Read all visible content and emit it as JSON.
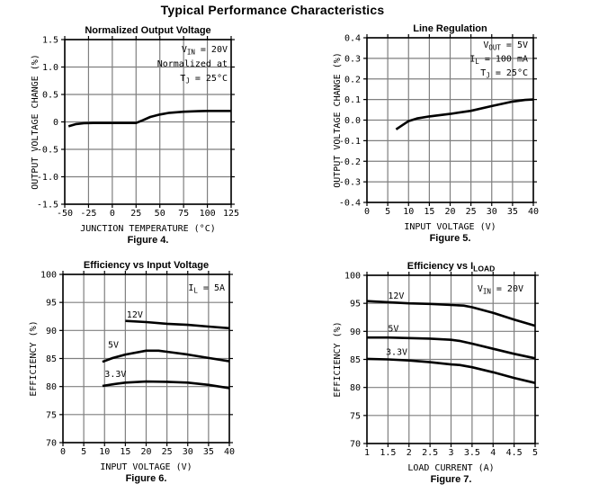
{
  "page": {
    "title": "Typical Performance Characteristics"
  },
  "colors": {
    "grid": "#7f7f7f",
    "ink": "#000000",
    "background": "#ffffff"
  },
  "chart_data": [
    {
      "type": "line",
      "figure": "figure4",
      "title": "Normalized Output Voltage",
      "caption": "Figure 4.",
      "xlabel": "JUNCTION TEMPERATURE (°C)",
      "ylabel": "OUTPUT VOLTAGE CHANGE (%)",
      "xlim": [
        -50,
        125
      ],
      "ylim": [
        -1.5,
        1.5
      ],
      "xticks": [
        -50,
        -25,
        0,
        25,
        50,
        75,
        100,
        125
      ],
      "xtick_labels": [
        "-50",
        "-25",
        "0",
        "25",
        "50",
        "75",
        "100",
        "125"
      ],
      "yticks": [
        1.5,
        1.0,
        0.5,
        0,
        -0.5,
        -1.0,
        -1.5
      ],
      "ytick_labels": [
        "1.5",
        "1.0",
        "0.5",
        "0",
        "-0.5",
        "-1.0",
        "-1.5"
      ],
      "grid": true,
      "annotations": [
        "V_{IN} = 20V",
        "Normalized at",
        "T_{J} = 25°C"
      ],
      "ann_anchor": {
        "top": 14,
        "line_height": 16,
        "right": 4
      },
      "series": [
        {
          "name": "output-voltage-change",
          "x": [
            -46,
            -38,
            -30,
            -20,
            -10,
            0,
            10,
            25,
            32,
            40,
            50,
            60,
            75,
            90,
            100,
            125
          ],
          "y": [
            -0.08,
            -0.04,
            -0.025,
            -0.02,
            -0.02,
            -0.02,
            -0.02,
            -0.02,
            0.03,
            0.09,
            0.135,
            0.165,
            0.185,
            0.195,
            0.2,
            0.2
          ]
        }
      ]
    },
    {
      "type": "line",
      "figure": "figure5",
      "title": "Line Regulation",
      "caption": "Figure 5.",
      "xlabel": "INPUT VOLTAGE (V)",
      "ylabel": "OUTPUT VOLTAGE CHANGE (%)",
      "xlim": [
        0,
        40
      ],
      "ylim": [
        -0.4,
        0.4
      ],
      "xticks": [
        0,
        5,
        10,
        15,
        20,
        25,
        30,
        35,
        40
      ],
      "xtick_labels": [
        "0",
        "5",
        "10",
        "15",
        "20",
        "25",
        "30",
        "35",
        "40"
      ],
      "yticks": [
        0.4,
        0.3,
        0.2,
        0.1,
        0.0,
        -0.1,
        -0.2,
        -0.3,
        -0.4
      ],
      "ytick_labels": [
        "0.4",
        "0.3",
        "0.2",
        "0.1",
        "0.0",
        "-0.1",
        "-0.2",
        "-0.3",
        "-0.4"
      ],
      "grid": true,
      "annotations": [
        "V_{OUT} = 5V",
        "I_{L} = 100 mA",
        "T_{J} = 25°C"
      ],
      "ann_anchor": {
        "top": 11,
        "line_height": 15.5,
        "right": 6
      },
      "series": [
        {
          "name": "output-voltage-change",
          "x": [
            7,
            8.5,
            10,
            12,
            15,
            20,
            25,
            30,
            35,
            38,
            40
          ],
          "y": [
            -0.045,
            -0.025,
            -0.005,
            0.008,
            0.018,
            0.03,
            0.045,
            0.068,
            0.09,
            0.098,
            0.1
          ]
        }
      ]
    },
    {
      "type": "line",
      "figure": "figure6",
      "title": "Efficiency vs Input Voltage",
      "caption": "Figure 6.",
      "xlabel": "INPUT VOLTAGE (V)",
      "ylabel": "EFFICIENCY (%)",
      "xlim": [
        0,
        40
      ],
      "ylim": [
        70,
        100
      ],
      "xticks": [
        0,
        5,
        10,
        15,
        20,
        25,
        30,
        35,
        40
      ],
      "xtick_labels": [
        "0",
        "5",
        "10",
        "15",
        "20",
        "25",
        "30",
        "35",
        "40"
      ],
      "yticks": [
        100,
        95,
        90,
        85,
        80,
        75,
        70
      ],
      "ytick_labels": [
        "100",
        "95",
        "90",
        "85",
        "80",
        "75",
        "70"
      ],
      "grid": true,
      "annotations": [
        "I_{L} = 5A"
      ],
      "ann_anchor": {
        "top": 18,
        "line_height": 16,
        "right": 5
      },
      "series": [
        {
          "name": "12V",
          "label": "12V",
          "label_at": [
            15.3,
            92.3
          ],
          "x": [
            15,
            20,
            25,
            30,
            35,
            40
          ],
          "y": [
            91.7,
            91.5,
            91.2,
            91.0,
            90.7,
            90.4
          ]
        },
        {
          "name": "5V",
          "label": "5V",
          "label_at": [
            10.8,
            86.9
          ],
          "x": [
            9.5,
            12,
            15,
            20,
            23,
            25,
            30,
            35,
            40
          ],
          "y": [
            84.4,
            85.1,
            85.7,
            86.4,
            86.4,
            86.2,
            85.7,
            85.1,
            84.5
          ]
        },
        {
          "name": "3.3V",
          "label": "3.3V",
          "label_at": [
            10.0,
            81.7
          ],
          "x": [
            9.5,
            12,
            15,
            20,
            25,
            30,
            35,
            40
          ],
          "y": [
            80.1,
            80.4,
            80.7,
            80.9,
            80.85,
            80.7,
            80.3,
            79.7
          ]
        }
      ]
    },
    {
      "type": "line",
      "figure": "figure7",
      "title": "Efficiency vs I_{LOAD}",
      "caption": "Figure 7.",
      "xlabel": "LOAD CURRENT (A)",
      "ylabel": "EFFICIENCY (%)",
      "xlim": [
        1,
        5
      ],
      "ylim": [
        70,
        100
      ],
      "xticks": [
        1,
        1.5,
        2,
        2.5,
        3,
        3.5,
        4,
        4.5,
        5
      ],
      "xtick_labels": [
        "1",
        "1.5",
        "2",
        "2.5",
        "3",
        "3.5",
        "4",
        "4.5",
        "5"
      ],
      "yticks": [
        100,
        95,
        90,
        85,
        80,
        75,
        70
      ],
      "ytick_labels": [
        "100",
        "95",
        "90",
        "85",
        "80",
        "75",
        "70"
      ],
      "grid": true,
      "annotations": [
        "V_{IN} = 20V"
      ],
      "ann_anchor": {
        "top": 18,
        "line_height": 16,
        "right": 13
      },
      "series": [
        {
          "name": "12V",
          "label": "12V",
          "label_at": [
            1.5,
            95.8
          ],
          "x": [
            1,
            1.5,
            2,
            2.5,
            3,
            3.3,
            3.5,
            4,
            4.5,
            5
          ],
          "y": [
            95.4,
            95.2,
            95.0,
            94.9,
            94.7,
            94.6,
            94.3,
            93.3,
            92.1,
            91.0
          ]
        },
        {
          "name": "5V",
          "label": "5V",
          "label_at": [
            1.5,
            90.0
          ],
          "x": [
            1,
            1.5,
            2,
            2.5,
            3,
            3.2,
            3.5,
            4,
            4.5,
            5
          ],
          "y": [
            88.9,
            88.9,
            88.8,
            88.7,
            88.5,
            88.3,
            87.8,
            86.9,
            86.0,
            85.2
          ]
        },
        {
          "name": "3.3V",
          "label": "3.3V",
          "label_at": [
            1.45,
            85.8
          ],
          "x": [
            1,
            1.5,
            2,
            2.5,
            3,
            3.2,
            3.5,
            4,
            4.5,
            5
          ],
          "y": [
            85.1,
            85.0,
            84.8,
            84.5,
            84.1,
            84.0,
            83.6,
            82.7,
            81.7,
            80.8
          ]
        }
      ]
    }
  ]
}
